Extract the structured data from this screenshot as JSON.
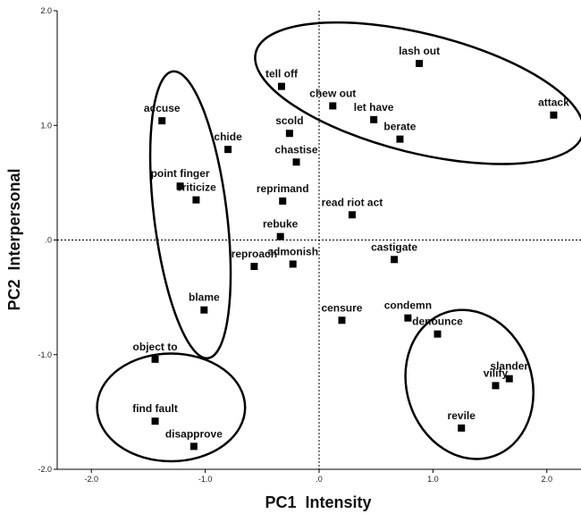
{
  "chart_data": {
    "type": "scatter",
    "xlabel": "PC1  Intensity",
    "ylabel": "PC2  Interpersonal",
    "xlim": [
      -2.3,
      2.3
    ],
    "ylim": [
      -2.0,
      2.0
    ],
    "x_ticks": [
      -2.0,
      -1.0,
      0.0,
      1.0,
      2.0
    ],
    "x_tick_labels": [
      "-2.0",
      "-1.0",
      ".0",
      "1.0",
      "2.0"
    ],
    "y_ticks": [
      -2.0,
      -1.0,
      0.0,
      1.0,
      2.0
    ],
    "y_tick_labels": [
      "-2.0",
      "-1.0",
      ".0",
      "1.0",
      "2.0"
    ],
    "grid": false,
    "reference_lines": {
      "x": 0,
      "y": 0,
      "style": "dotted"
    },
    "points": [
      {
        "label": "lash out",
        "x": 0.88,
        "y": 1.54
      },
      {
        "label": "attack",
        "x": 2.06,
        "y": 1.09
      },
      {
        "label": "chew out",
        "x": 0.12,
        "y": 1.17
      },
      {
        "label": "let have",
        "x": 0.48,
        "y": 1.05
      },
      {
        "label": "berate",
        "x": 0.71,
        "y": 0.88
      },
      {
        "label": "tell off",
        "x": -0.33,
        "y": 1.34
      },
      {
        "label": "scold",
        "x": -0.26,
        "y": 0.93
      },
      {
        "label": "chastise",
        "x": -0.2,
        "y": 0.68
      },
      {
        "label": "chide",
        "x": -0.8,
        "y": 0.79
      },
      {
        "label": "accuse",
        "x": -1.38,
        "y": 1.04
      },
      {
        "label": "point finger",
        "x": -1.22,
        "y": 0.47
      },
      {
        "label": "criticize",
        "x": -1.08,
        "y": 0.35
      },
      {
        "label": "reprimand",
        "x": -0.32,
        "y": 0.34
      },
      {
        "label": "read riot act",
        "x": 0.29,
        "y": 0.22
      },
      {
        "label": "rebuke",
        "x": -0.34,
        "y": 0.03
      },
      {
        "label": "admonish",
        "x": -0.23,
        "y": -0.21
      },
      {
        "label": "reproach",
        "x": -0.57,
        "y": -0.23
      },
      {
        "label": "castigate",
        "x": 0.66,
        "y": -0.17
      },
      {
        "label": "blame",
        "x": -1.01,
        "y": -0.61
      },
      {
        "label": "censure",
        "x": 0.2,
        "y": -0.7
      },
      {
        "label": "condemn",
        "x": 0.78,
        "y": -0.68
      },
      {
        "label": "denounce",
        "x": 1.04,
        "y": -0.82
      },
      {
        "label": "object to",
        "x": -1.44,
        "y": -1.04
      },
      {
        "label": "vilify",
        "x": 1.55,
        "y": -1.27
      },
      {
        "label": "slander",
        "x": 1.67,
        "y": -1.21
      },
      {
        "label": "revile",
        "x": 1.25,
        "y": -1.64
      },
      {
        "label": "find fault",
        "x": -1.44,
        "y": -1.58
      },
      {
        "label": "disapprove",
        "x": -1.1,
        "y": -1.8
      }
    ],
    "groups": [
      {
        "cx": 0.88,
        "cy": 1.28,
        "rx": 1.48,
        "ry": 0.52,
        "angle": 14
      },
      {
        "cx": -1.13,
        "cy": 0.22,
        "rx": 0.32,
        "ry": 1.26,
        "angle": -7
      },
      {
        "cx": -1.3,
        "cy": -1.46,
        "rx": 0.65,
        "ry": 0.47,
        "angle": 0
      },
      {
        "cx": 1.32,
        "cy": -1.26,
        "rx": 0.55,
        "ry": 0.66,
        "angle": -18
      }
    ]
  }
}
